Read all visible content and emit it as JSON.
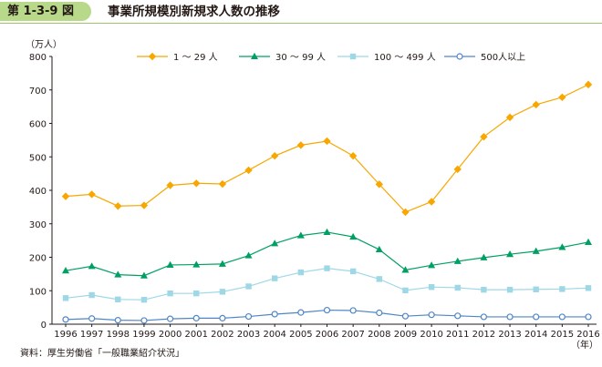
{
  "figure": {
    "number": "第 1-3-9 図",
    "title": "事業所規模別新規求人数の推移"
  },
  "source_note": "資料：厚生労働省「一般職業紹介状況」",
  "colors": {
    "badge": "#b8d98a",
    "s1": "#f7a700",
    "s2": "#00a064",
    "s3": "#9ed8e6",
    "s4": "#4f86c6",
    "axis": "#231815"
  },
  "chart_data": {
    "type": "line",
    "title": "事業所規模別新規求人数の推移",
    "ylabel": "（万人）",
    "xlabel": "（年）",
    "ylim": [
      0,
      800
    ],
    "yticks": [
      0,
      100,
      200,
      300,
      400,
      500,
      600,
      700,
      800
    ],
    "grid": false,
    "legend_position": "top",
    "categories": [
      "1996",
      "1997",
      "1998",
      "1999",
      "2000",
      "2001",
      "2002",
      "2003",
      "2004",
      "2005",
      "2006",
      "2007",
      "2008",
      "2009",
      "2010",
      "2011",
      "2012",
      "2013",
      "2014",
      "2015",
      "2016"
    ],
    "series": [
      {
        "name": "1 ～ 29 人",
        "marker": "diamond",
        "color": "#f7a700",
        "values": [
          382,
          388,
          353,
          355,
          415,
          421,
          419,
          460,
          503,
          535,
          547,
          503,
          418,
          335,
          366,
          463,
          560,
          618,
          656,
          678,
          716
        ]
      },
      {
        "name": "30 ～ 99 人",
        "marker": "triangle",
        "color": "#00a064",
        "values": [
          160,
          173,
          148,
          145,
          177,
          178,
          180,
          205,
          241,
          265,
          275,
          261,
          223,
          162,
          176,
          188,
          199,
          209,
          218,
          230,
          245
        ]
      },
      {
        "name": "100 ～ 499 人",
        "marker": "square",
        "color": "#9ed8e6",
        "values": [
          78,
          87,
          74,
          73,
          92,
          92,
          97,
          113,
          137,
          155,
          167,
          158,
          135,
          101,
          111,
          109,
          103,
          103,
          104,
          105,
          108
        ]
      },
      {
        "name": "500人以上",
        "marker": "circle",
        "color": "#4f86c6",
        "values": [
          14,
          17,
          12,
          11,
          16,
          18,
          18,
          23,
          30,
          35,
          42,
          41,
          34,
          24,
          28,
          25,
          22,
          22,
          22,
          22,
          22
        ]
      }
    ]
  }
}
